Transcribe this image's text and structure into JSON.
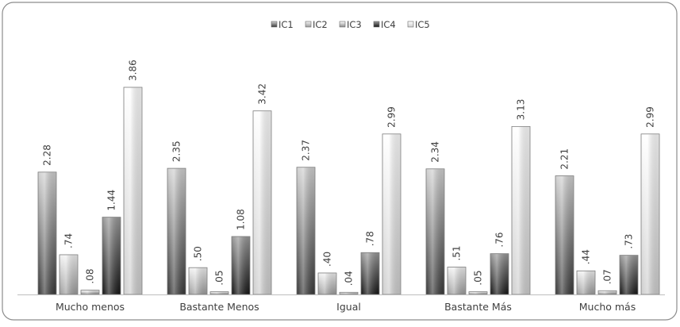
{
  "chart_data": {
    "type": "bar",
    "categories": [
      "Mucho menos",
      "Bastante Menos",
      "Igual",
      "Bastante Más",
      "Mucho más"
    ],
    "series": [
      {
        "name": "IC1",
        "values": [
          2.28,
          2.35,
          2.37,
          2.34,
          2.21
        ],
        "labels": [
          "2.28",
          "2.35",
          "2.37",
          "2.34",
          "2.21"
        ]
      },
      {
        "name": "IC2",
        "values": [
          0.74,
          0.5,
          0.4,
          0.51,
          0.44
        ],
        "labels": [
          ".74",
          ".50",
          ".40",
          ".51",
          ".44"
        ]
      },
      {
        "name": "IC3",
        "values": [
          0.08,
          0.05,
          0.04,
          0.05,
          0.07
        ],
        "labels": [
          ".08",
          ".05",
          ".04",
          ".05",
          ".07"
        ]
      },
      {
        "name": "IC4",
        "values": [
          1.44,
          1.08,
          0.78,
          0.76,
          0.73
        ],
        "labels": [
          "1.44",
          "1.08",
          ".78",
          ".76",
          ".73"
        ]
      },
      {
        "name": "IC5",
        "values": [
          3.86,
          3.42,
          2.99,
          3.13,
          2.99
        ],
        "labels": [
          "3.86",
          "3.42",
          "2.99",
          "3.13",
          "2.99"
        ]
      }
    ],
    "ylim": [
      0,
      4.3
    ],
    "grid": false,
    "legend_position": "top-center",
    "colors": {
      "IC1": [
        "#d2d2d2",
        "#3a3a3a"
      ],
      "IC2": [
        "#f3f3f3",
        "#9c9c9c"
      ],
      "IC3": [
        "#ffffff",
        "#8a8a8a"
      ],
      "IC4": [
        "#9a9a9a",
        "#151515"
      ],
      "IC5": [
        "#ffffff",
        "#cfcfcf"
      ]
    }
  }
}
